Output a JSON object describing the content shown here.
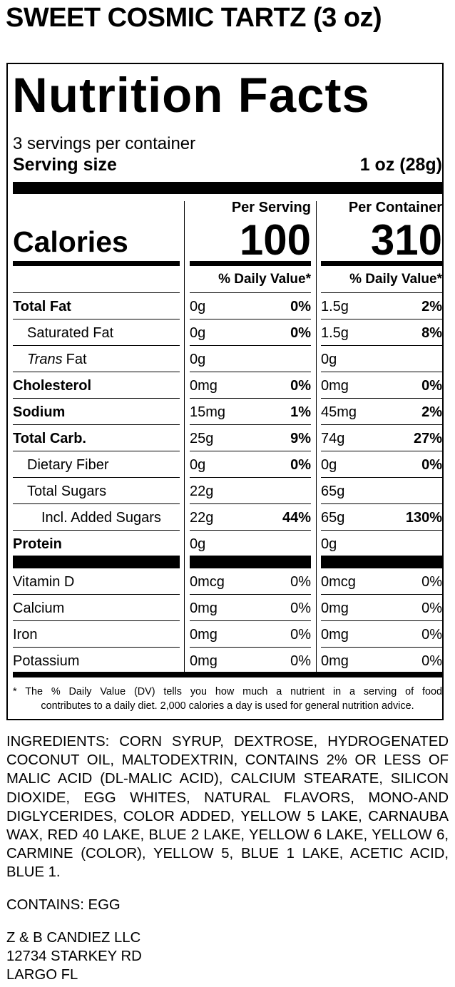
{
  "product_title": "SWEET COSMIC TARTZ (3 oz)",
  "label": {
    "title": "Nutrition Facts",
    "servings": "3 servings per container",
    "serving_size_label": "Serving size",
    "serving_size": "1 oz (28g)",
    "per_serving": "Per Serving",
    "per_container": "Per Container",
    "calories_label": "Calories",
    "calories_serving": "100",
    "calories_container": "310",
    "dv_header_serving": "% Daily Value*",
    "dv_header_container": "% Daily Value*",
    "nutrients": [
      {
        "name": "Total Fat",
        "serving": "0g",
        "serving_dv": "0%",
        "container": "1.5g",
        "container_dv": "2%"
      },
      {
        "name": "Saturated Fat",
        "serving": "0g",
        "serving_dv": "0%",
        "container": "1.5g",
        "container_dv": "8%"
      },
      {
        "name_italic": "Trans",
        "name": "Fat",
        "serving": "0g",
        "container": "0g"
      },
      {
        "name": "Cholesterol",
        "serving": "0mg",
        "serving_dv": "0%",
        "container": "0mg",
        "container_dv": "0%"
      },
      {
        "name": "Sodium",
        "serving": "15mg",
        "serving_dv": "1%",
        "container": "45mg",
        "container_dv": "2%"
      },
      {
        "name": "Total Carb.",
        "serving": "25g",
        "serving_dv": "9%",
        "container": "74g",
        "container_dv": "27%"
      },
      {
        "name": "Dietary Fiber",
        "serving": "0g",
        "serving_dv": "0%",
        "container": "0g",
        "container_dv": "0%"
      },
      {
        "name": "Total Sugars",
        "serving": "22g",
        "container": "65g"
      },
      {
        "name": "Incl. Added Sugars",
        "serving": "22g",
        "serving_dv": "44%",
        "container": "65g",
        "container_dv": "130%"
      },
      {
        "name": "Protein",
        "serving": "0g",
        "container": "0g"
      }
    ],
    "vitamins": [
      {
        "name": "Vitamin D",
        "serving": "0mcg",
        "serving_dv": "0%",
        "container": "0mcg",
        "container_dv": "0%"
      },
      {
        "name": "Calcium",
        "serving": "0mg",
        "serving_dv": "0%",
        "container": "0mg",
        "container_dv": "0%"
      },
      {
        "name": "Iron",
        "serving": "0mg",
        "serving_dv": "0%",
        "container": "0mg",
        "container_dv": "0%"
      },
      {
        "name": "Potassium",
        "serving": "0mg",
        "serving_dv": "0%",
        "container": "0mg",
        "container_dv": "0%"
      }
    ],
    "footnote_line1": "* The % Daily Value (DV) tells you how much a nutrient in a serving of food",
    "footnote_line2": "contributes to a daily diet. 2,000 calories a day is used for general nutrition advice."
  },
  "ingredients": "INGREDIENTS: CORN SYRUP, DEXTROSE, HYDROGENATED COCONUT OIL, MALTODEXTRIN, CONTAINS 2% OR LESS OF MALIC ACID (DL-MALIC ACID), CALCIUM STEARATE, SILICON DIOXIDE, EGG WHITES, NATURAL FLAVORS, MONO-AND DIGLYCERIDES, COLOR ADDED, YELLOW 5 LAKE, CARNAUBA WAX, RED 40 LAKE, BLUE 2 LAKE, YELLOW 6 LAKE, YELLOW 6, CARMINE (COLOR), YELLOW 5, BLUE 1 LAKE, ACETIC ACID, BLUE 1.",
  "contains": "CONTAINS: EGG",
  "address": [
    "Z & B CANDIEZ LLC",
    "12734 STARKEY RD",
    "LARGO FL"
  ]
}
